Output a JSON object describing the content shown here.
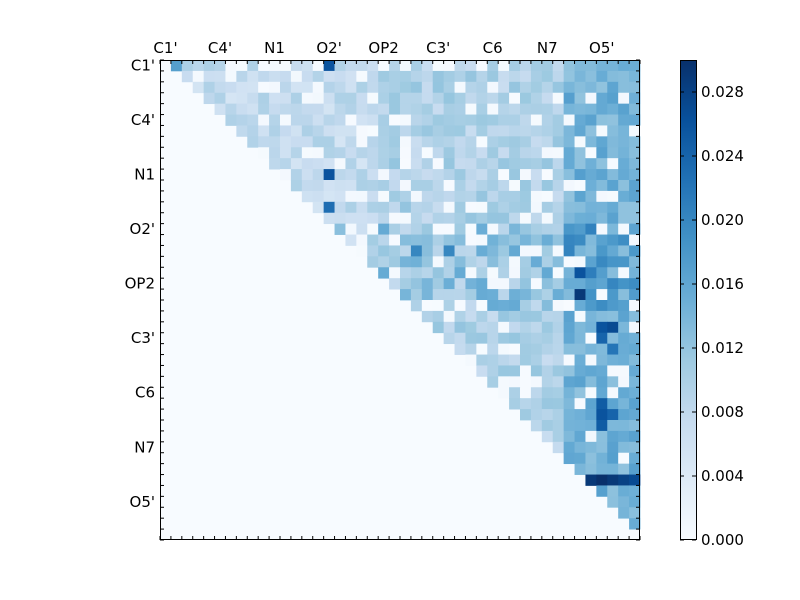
{
  "chart_data": {
    "type": "heatmap",
    "title": "",
    "xlabel": "",
    "ylabel": "",
    "x_tick_labels": [
      "C1'",
      "C4'",
      "N1",
      "O2'",
      "OP2",
      "C3'",
      "C6",
      "N7",
      "O5'"
    ],
    "y_tick_labels": [
      "C1'",
      "C4'",
      "N1",
      "O2'",
      "OP2",
      "C3'",
      "C6",
      "N7",
      "O5'"
    ],
    "x_tick_label_position": "top",
    "matrix_shape": "upper-triangular",
    "n_cells": 44,
    "colormap": "Blues",
    "color_low": "#f7fbff",
    "color_high": "#08306b",
    "vmin": 0.0,
    "vmax": 0.03,
    "colorbar": {
      "ticks": [
        0.0,
        0.004,
        0.008,
        0.012,
        0.016,
        0.02,
        0.024,
        0.028
      ],
      "tick_labels": [
        "0.000",
        "0.004",
        "0.008",
        "0.012",
        "0.016",
        "0.020",
        "0.024",
        "0.028"
      ],
      "position": "right"
    },
    "strong_cells": [
      {
        "row": 0,
        "col": 1,
        "value": 0.017
      },
      {
        "row": 0,
        "col": 15,
        "value": 0.026
      },
      {
        "row": 10,
        "col": 15,
        "value": 0.026
      },
      {
        "row": 13,
        "col": 15,
        "value": 0.023
      },
      {
        "row": 17,
        "col": 23,
        "value": 0.02
      },
      {
        "row": 17,
        "col": 26,
        "value": 0.02
      },
      {
        "row": 19,
        "col": 38,
        "value": 0.026
      },
      {
        "row": 19,
        "col": 39,
        "value": 0.021
      },
      {
        "row": 21,
        "col": 38,
        "value": 0.029
      },
      {
        "row": 24,
        "col": 40,
        "value": 0.026
      },
      {
        "row": 24,
        "col": 41,
        "value": 0.027
      },
      {
        "row": 25,
        "col": 40,
        "value": 0.024
      },
      {
        "row": 26,
        "col": 41,
        "value": 0.022
      },
      {
        "row": 31,
        "col": 40,
        "value": 0.025
      },
      {
        "row": 32,
        "col": 40,
        "value": 0.026
      },
      {
        "row": 32,
        "col": 41,
        "value": 0.024
      },
      {
        "row": 33,
        "col": 40,
        "value": 0.025
      },
      {
        "row": 38,
        "col": 39,
        "value": 0.029
      },
      {
        "row": 38,
        "col": 40,
        "value": 0.03
      },
      {
        "row": 38,
        "col": 41,
        "value": 0.029
      },
      {
        "row": 38,
        "col": 42,
        "value": 0.028
      },
      {
        "row": 38,
        "col": 43,
        "value": 0.027
      }
    ]
  }
}
